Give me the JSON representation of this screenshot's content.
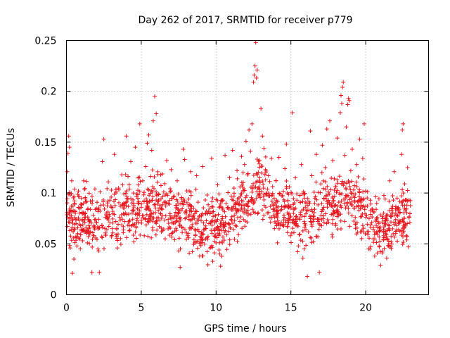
{
  "chart_data": {
    "type": "scatter",
    "title": "Day 262 of 2017, SRMTID for receiver p779",
    "xlabel": "GPS time / hours",
    "ylabel": "SRMTID / TECUs",
    "xlim": [
      0,
      24.2
    ],
    "ylim": [
      0,
      0.25
    ],
    "xticks": [
      0,
      5,
      10,
      15,
      20
    ],
    "xtick_labels": [
      "0",
      "5",
      "10",
      "15",
      "20"
    ],
    "yticks": [
      0,
      0.05,
      0.1,
      0.15,
      0.2,
      0.25
    ],
    "ytick_labels": [
      "0",
      "0.05",
      "0.1",
      "0.15",
      "0.2",
      "0.25"
    ],
    "grid": true,
    "marker": "+",
    "marker_color": "#e8141c",
    "series": [
      {
        "name": "SRMTID",
        "points": [
          [
            0.05,
            0.121
          ],
          [
            0.1,
            0.139
          ],
          [
            0.15,
            0.156
          ],
          [
            0.2,
            0.145
          ],
          [
            0.25,
            0.098
          ],
          [
            0.3,
            0.083
          ],
          [
            0.35,
            0.112
          ],
          [
            0.4,
            0.021
          ],
          [
            0.45,
            0.062
          ],
          [
            0.5,
            0.035
          ],
          [
            0.55,
            0.089
          ],
          [
            0.6,
            0.074
          ],
          [
            0.65,
            0.056
          ],
          [
            0.7,
            0.048
          ],
          [
            0.75,
            0.066
          ],
          [
            0.8,
            0.102
          ],
          [
            0.85,
            0.073
          ],
          [
            0.9,
            0.085
          ],
          [
            0.95,
            0.059
          ],
          [
            1.0,
            0.095
          ],
          [
            1.05,
            0.081
          ],
          [
            1.1,
            0.064
          ],
          [
            1.15,
            0.112
          ],
          [
            1.2,
            0.076
          ],
          [
            1.3,
            0.091
          ],
          [
            1.4,
            0.051
          ],
          [
            1.5,
            0.068
          ],
          [
            1.6,
            0.084
          ],
          [
            1.7,
            0.022
          ],
          [
            1.8,
            0.058
          ],
          [
            1.9,
            0.104
          ],
          [
            2.0,
            0.071
          ],
          [
            2.1,
            0.045
          ],
          [
            2.2,
            0.022
          ],
          [
            2.3,
            0.088
          ],
          [
            2.4,
            0.131
          ],
          [
            2.5,
            0.153
          ],
          [
            2.6,
            0.076
          ],
          [
            2.7,
            0.064
          ],
          [
            2.8,
            0.111
          ],
          [
            2.9,
            0.093
          ],
          [
            3.0,
            0.057
          ],
          [
            3.1,
            0.082
          ],
          [
            3.2,
            0.138
          ],
          [
            3.3,
            0.072
          ],
          [
            3.4,
            0.046
          ],
          [
            3.5,
            0.103
          ],
          [
            3.6,
            0.087
          ],
          [
            3.7,
            0.118
          ],
          [
            3.8,
            0.061
          ],
          [
            3.9,
            0.079
          ],
          [
            4.0,
            0.156
          ],
          [
            4.1,
            0.094
          ],
          [
            4.2,
            0.068
          ],
          [
            4.3,
            0.131
          ],
          [
            4.4,
            0.083
          ],
          [
            4.5,
            0.052
          ],
          [
            4.6,
            0.145
          ],
          [
            4.7,
            0.099
          ],
          [
            4.8,
            0.071
          ],
          [
            4.9,
            0.168
          ],
          [
            5.0,
            0.086
          ],
          [
            5.1,
            0.112
          ],
          [
            5.2,
            0.058
          ],
          [
            5.3,
            0.126
          ],
          [
            5.4,
            0.149
          ],
          [
            5.5,
            0.157
          ],
          [
            5.6,
            0.077
          ],
          [
            5.7,
            0.142
          ],
          [
            5.8,
            0.171
          ],
          [
            5.9,
            0.195
          ],
          [
            6.0,
            0.178
          ],
          [
            6.1,
            0.092
          ],
          [
            6.2,
            0.067
          ],
          [
            6.3,
            0.118
          ],
          [
            6.4,
            0.084
          ],
          [
            6.5,
            0.101
          ],
          [
            6.6,
            0.055
          ],
          [
            6.7,
            0.132
          ],
          [
            6.8,
            0.074
          ],
          [
            6.9,
            0.089
          ],
          [
            7.0,
            0.123
          ],
          [
            7.1,
            0.061
          ],
          [
            7.2,
            0.097
          ],
          [
            7.3,
            0.081
          ],
          [
            7.4,
            0.112
          ],
          [
            7.5,
            0.043
          ],
          [
            7.6,
            0.027
          ],
          [
            7.7,
            0.094
          ],
          [
            7.8,
            0.143
          ],
          [
            7.9,
            0.133
          ],
          [
            8.0,
            0.076
          ],
          [
            8.1,
            0.058
          ],
          [
            8.2,
            0.102
          ],
          [
            8.3,
            0.121
          ],
          [
            8.4,
            0.069
          ],
          [
            8.5,
            0.085
          ],
          [
            8.6,
            0.052
          ],
          [
            8.7,
            0.117
          ],
          [
            8.8,
            0.091
          ],
          [
            8.9,
            0.038
          ],
          [
            9.0,
            0.073
          ],
          [
            9.1,
            0.126
          ],
          [
            9.2,
            0.064
          ],
          [
            9.3,
            0.055
          ],
          [
            9.4,
            0.098
          ],
          [
            9.5,
            0.082
          ],
          [
            9.6,
            0.046
          ],
          [
            9.7,
            0.134
          ],
          [
            9.8,
            0.077
          ],
          [
            9.9,
            0.063
          ],
          [
            10.0,
            0.051
          ],
          [
            10.1,
            0.108
          ],
          [
            10.2,
            0.044
          ],
          [
            10.3,
            0.028
          ],
          [
            10.4,
            0.093
          ],
          [
            10.5,
            0.071
          ],
          [
            10.6,
            0.137
          ],
          [
            10.7,
            0.059
          ],
          [
            10.8,
            0.086
          ],
          [
            10.9,
            0.115
          ],
          [
            11.0,
            0.074
          ],
          [
            11.1,
            0.142
          ],
          [
            11.2,
            0.097
          ],
          [
            11.3,
            0.068
          ],
          [
            11.4,
            0.122
          ],
          [
            11.5,
            0.083
          ],
          [
            11.6,
            0.106
          ],
          [
            11.7,
            0.136
          ],
          [
            11.8,
            0.092
          ],
          [
            11.9,
            0.128
          ],
          [
            12.0,
            0.151
          ],
          [
            12.1,
            0.118
          ],
          [
            12.2,
            0.162
          ],
          [
            12.3,
            0.141
          ],
          [
            12.4,
            0.168
          ],
          [
            12.5,
            0.209
          ],
          [
            12.55,
            0.216
          ],
          [
            12.6,
            0.225
          ],
          [
            12.65,
            0.248
          ],
          [
            12.7,
            0.213
          ],
          [
            12.75,
            0.221
          ],
          [
            12.8,
            0.105
          ],
          [
            12.9,
            0.132
          ],
          [
            13.0,
            0.183
          ],
          [
            13.1,
            0.156
          ],
          [
            13.2,
            0.144
          ],
          [
            13.3,
            0.123
          ],
          [
            13.4,
            0.098
          ],
          [
            13.5,
            0.117
          ],
          [
            13.6,
            0.076
          ],
          [
            13.7,
            0.134
          ],
          [
            13.8,
            0.089
          ],
          [
            13.9,
            0.065
          ],
          [
            14.0,
            0.112
          ],
          [
            14.1,
            0.051
          ],
          [
            14.2,
            0.135
          ],
          [
            14.3,
            0.083
          ],
          [
            14.4,
            0.097
          ],
          [
            14.5,
            0.069
          ],
          [
            14.6,
            0.124
          ],
          [
            14.7,
            0.148
          ],
          [
            14.8,
            0.073
          ],
          [
            14.9,
            0.106
          ],
          [
            15.0,
            0.087
          ],
          [
            15.1,
            0.179
          ],
          [
            15.2,
            0.061
          ],
          [
            15.3,
            0.115
          ],
          [
            15.4,
            0.093
          ],
          [
            15.5,
            0.048
          ],
          [
            15.6,
            0.074
          ],
          [
            15.7,
            0.128
          ],
          [
            15.8,
            0.036
          ],
          [
            15.9,
            0.099
          ],
          [
            16.0,
            0.064
          ],
          [
            16.1,
            0.018
          ],
          [
            16.2,
            0.083
          ],
          [
            16.3,
            0.161
          ],
          [
            16.4,
            0.117
          ],
          [
            16.5,
            0.052
          ],
          [
            16.6,
            0.095
          ],
          [
            16.7,
            0.138
          ],
          [
            16.8,
            0.072
          ],
          [
            16.9,
            0.022
          ],
          [
            17.0,
            0.109
          ],
          [
            17.1,
            0.147
          ],
          [
            17.2,
            0.086
          ],
          [
            17.3,
            0.125
          ],
          [
            17.4,
            0.163
          ],
          [
            17.5,
            0.101
          ],
          [
            17.6,
            0.171
          ],
          [
            17.7,
            0.079
          ],
          [
            17.8,
            0.132
          ],
          [
            17.9,
            0.114
          ],
          [
            18.0,
            0.068
          ],
          [
            18.1,
            0.154
          ],
          [
            18.2,
            0.091
          ],
          [
            18.3,
            0.179
          ],
          [
            18.35,
            0.196
          ],
          [
            18.4,
            0.188
          ],
          [
            18.45,
            0.204
          ],
          [
            18.5,
            0.209
          ],
          [
            18.6,
            0.137
          ],
          [
            18.7,
            0.165
          ],
          [
            18.8,
            0.187
          ],
          [
            18.85,
            0.193
          ],
          [
            18.9,
            0.191
          ],
          [
            19.0,
            0.122
          ],
          [
            19.1,
            0.143
          ],
          [
            19.2,
            0.097
          ],
          [
            19.3,
            0.076
          ],
          [
            19.4,
            0.128
          ],
          [
            19.5,
            0.116
          ],
          [
            19.6,
            0.153
          ],
          [
            19.7,
            0.088
          ],
          [
            19.8,
            0.134
          ],
          [
            19.9,
            0.168
          ],
          [
            20.0,
            0.102
          ],
          [
            20.1,
            0.062
          ],
          [
            20.2,
            0.045
          ],
          [
            20.3,
            0.093
          ],
          [
            20.4,
            0.071
          ],
          [
            20.5,
            0.055
          ],
          [
            20.6,
            0.038
          ],
          [
            20.7,
            0.084
          ],
          [
            20.8,
            0.066
          ],
          [
            20.9,
            0.048
          ],
          [
            21.0,
            0.029
          ],
          [
            21.1,
            0.077
          ],
          [
            21.2,
            0.058
          ],
          [
            21.3,
            0.094
          ],
          [
            21.4,
            0.036
          ],
          [
            21.5,
            0.069
          ],
          [
            21.6,
            0.112
          ],
          [
            21.7,
            0.052
          ],
          [
            21.8,
            0.087
          ],
          [
            21.9,
            0.121
          ],
          [
            22.0,
            0.074
          ],
          [
            22.1,
            0.095
          ],
          [
            22.2,
            0.064
          ],
          [
            22.3,
            0.081
          ],
          [
            22.4,
            0.138
          ],
          [
            22.45,
            0.162
          ],
          [
            22.5,
            0.168
          ],
          [
            22.6,
            0.109
          ],
          [
            22.7,
            0.058
          ],
          [
            22.8,
            0.125
          ],
          [
            22.85,
            0.047
          ],
          [
            22.9,
            0.093
          ],
          [
            22.95,
            0.071
          ]
        ]
      }
    ],
    "band_mean_curve": [
      [
        0,
        0.078
      ],
      [
        1,
        0.074
      ],
      [
        2,
        0.073
      ],
      [
        3,
        0.079
      ],
      [
        4,
        0.082
      ],
      [
        5,
        0.084
      ],
      [
        6,
        0.088
      ],
      [
        7,
        0.081
      ],
      [
        8,
        0.077
      ],
      [
        9,
        0.068
      ],
      [
        10,
        0.066
      ],
      [
        11,
        0.075
      ],
      [
        12,
        0.092
      ],
      [
        13,
        0.107
      ],
      [
        14,
        0.088
      ],
      [
        15,
        0.079
      ],
      [
        16,
        0.071
      ],
      [
        17,
        0.082
      ],
      [
        18,
        0.092
      ],
      [
        19,
        0.094
      ],
      [
        20,
        0.078
      ],
      [
        21,
        0.065
      ],
      [
        22,
        0.072
      ],
      [
        23,
        0.08
      ]
    ],
    "band_spread": 0.03,
    "band_points_per_hour": 60,
    "band_end_hour": 23.0
  }
}
